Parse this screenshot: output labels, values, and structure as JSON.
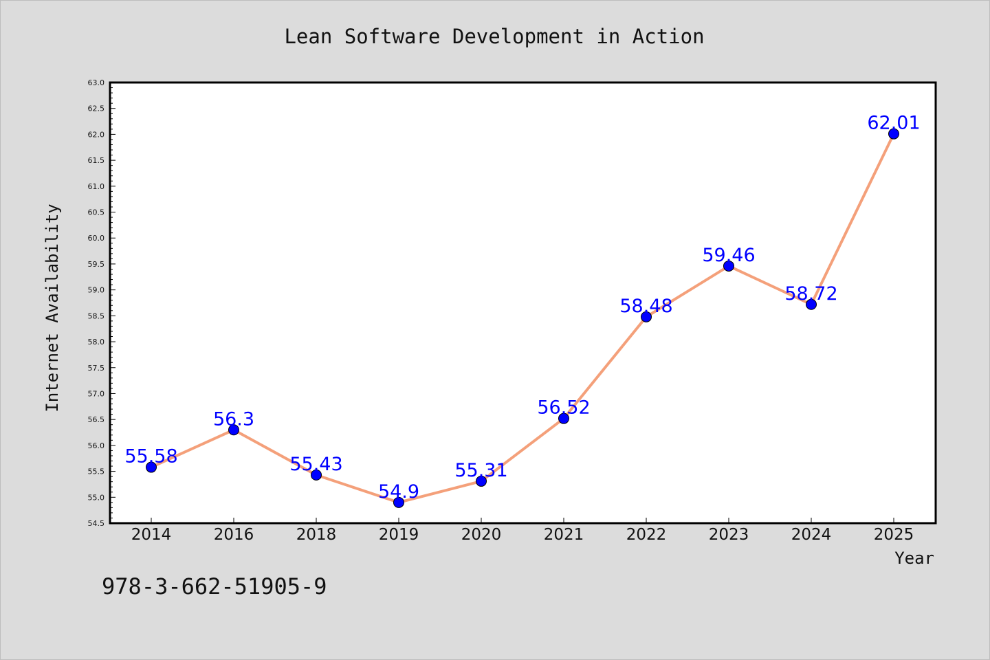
{
  "chart_data": {
    "type": "line",
    "title": "Lean Software Development in Action",
    "xlabel": "Year",
    "ylabel": "Internet Availability",
    "categories": [
      "2014",
      "2016",
      "2018",
      "2019",
      "2020",
      "2021",
      "2022",
      "2023",
      "2024",
      "2025"
    ],
    "series": [
      {
        "values": [
          55.58,
          56.3,
          55.43,
          54.9,
          55.31,
          56.52,
          58.48,
          59.46,
          58.72,
          62.01
        ]
      }
    ],
    "data_labels": [
      "55.58",
      "56.3",
      "55.43",
      "54.9",
      "55.31",
      "56.52",
      "58.48",
      "59.46",
      "58.72",
      "62.01"
    ],
    "ylim": [
      54.5,
      63.0
    ],
    "yticks": [
      "54.5",
      "55.0",
      "55.5",
      "56.0",
      "56.5",
      "57.0",
      "57.5",
      "58.0",
      "58.5",
      "59.0",
      "59.5",
      "60.0",
      "60.5",
      "61.0",
      "61.5",
      "62.0",
      "62.5",
      "63.0"
    ],
    "grid": false,
    "legend": "none",
    "colors": {
      "line": "#f4a07a",
      "marker": "#0000ff",
      "label": "#0000ff",
      "background": "#dcdcdc",
      "plot_bg": "#ffffff"
    }
  },
  "footer_text": "978-3-662-51905-9"
}
